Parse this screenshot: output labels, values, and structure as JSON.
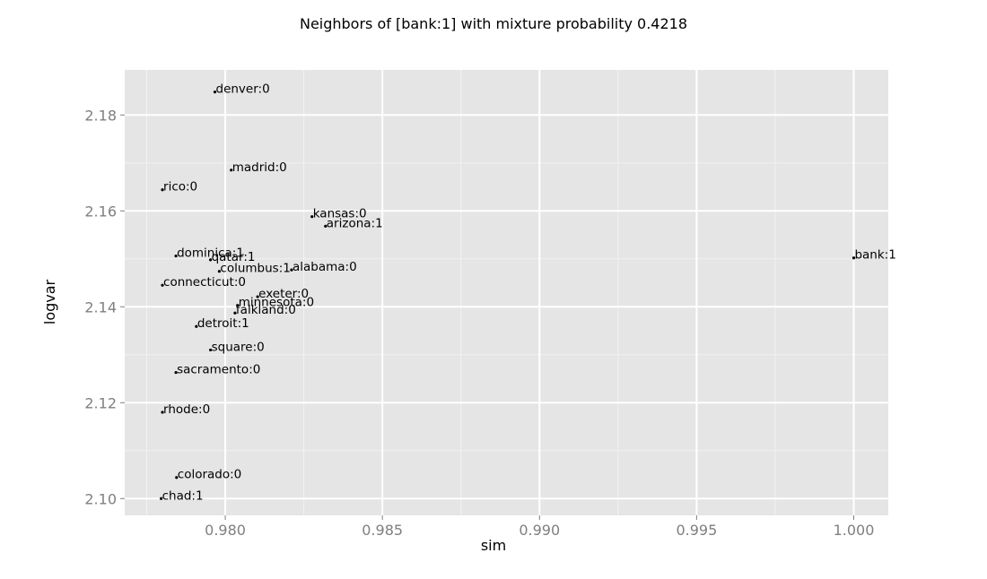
{
  "chart_data": {
    "type": "scatter",
    "title": "Neighbors of [bank:1] with mixture probability 0.4218",
    "xlabel": "sim",
    "ylabel": "logvar",
    "xlim": [
      0.9768,
      1.0011
    ],
    "ylim": [
      2.0965,
      2.1894
    ],
    "x_ticks": [
      0.98,
      0.985,
      0.99,
      0.995,
      1.0
    ],
    "x_tick_labels": [
      "0.980",
      "0.985",
      "0.990",
      "0.995",
      "1.000"
    ],
    "y_ticks": [
      2.1,
      2.12,
      2.14,
      2.16,
      2.18
    ],
    "y_tick_labels": [
      "2.10",
      "2.12",
      "2.14",
      "2.16",
      "2.18"
    ],
    "grid": true,
    "points": [
      {
        "label": "denver:0",
        "x": 0.97967,
        "y": 2.1848
      },
      {
        "label": "madrid:0",
        "x": 0.98019,
        "y": 2.1685
      },
      {
        "label": "rico:0",
        "x": 0.978,
        "y": 2.1644
      },
      {
        "label": "kansas:0",
        "x": 0.98276,
        "y": 2.1588
      },
      {
        "label": "arizona:1",
        "x": 0.98319,
        "y": 2.1568
      },
      {
        "label": "bank:1",
        "x": 1.0,
        "y": 2.1502
      },
      {
        "label": "dominica:1",
        "x": 0.97843,
        "y": 2.1506
      },
      {
        "label": "qatar:1",
        "x": 0.97953,
        "y": 2.1498
      },
      {
        "label": "columbus:1",
        "x": 0.97981,
        "y": 2.1474
      },
      {
        "label": "alabama:0",
        "x": 0.98211,
        "y": 2.1477
      },
      {
        "label": "connecticut:0",
        "x": 0.978,
        "y": 2.1445
      },
      {
        "label": "exeter:0",
        "x": 0.98103,
        "y": 2.1421
      },
      {
        "label": "minnesota:0",
        "x": 0.98039,
        "y": 2.1403
      },
      {
        "label": "falkland:0",
        "x": 0.98031,
        "y": 2.1387
      },
      {
        "label": "detroit:1",
        "x": 0.97908,
        "y": 2.1359
      },
      {
        "label": "square:0",
        "x": 0.97953,
        "y": 2.131
      },
      {
        "label": "sacramento:0",
        "x": 0.97843,
        "y": 2.1263
      },
      {
        "label": "rhode:0",
        "x": 0.978,
        "y": 2.118
      },
      {
        "label": "colorado:0",
        "x": 0.97845,
        "y": 2.1044
      },
      {
        "label": "chad:1",
        "x": 0.97796,
        "y": 2.1
      }
    ]
  }
}
